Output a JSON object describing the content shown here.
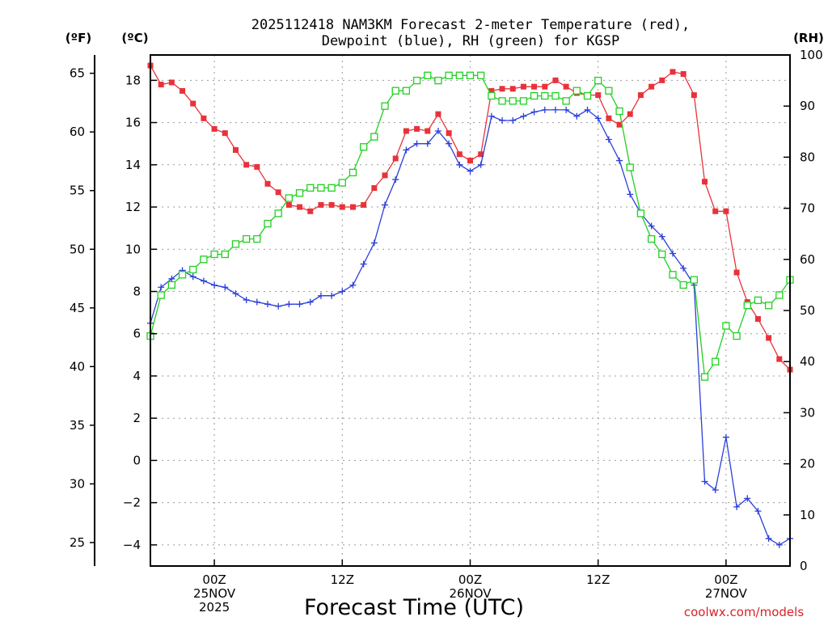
{
  "chart_data": {
    "type": "line",
    "title_line1": "2025112418 NAM3KM Forecast 2-meter Temperature (red),",
    "title_line2": "Dewpoint (blue), RH (green) for KGSP",
    "y_units_f": "(ºF)",
    "y_units_c": "(ºC)",
    "y_units_rh": "(RH)",
    "xlabel": "Forecast Time (UTC)",
    "credit": "coolwx.com/models",
    "x_range_hours": [
      0,
      60
    ],
    "celsius_range": [
      -5,
      19.2
    ],
    "rh_range": [
      0,
      100
    ],
    "celsius_ticks": [
      -4,
      -2,
      0,
      2,
      4,
      6,
      8,
      10,
      12,
      14,
      16,
      18
    ],
    "fahrenheit_ticks": [
      25,
      30,
      35,
      40,
      45,
      50,
      55,
      60,
      65
    ],
    "rh_ticks": [
      0,
      10,
      20,
      30,
      40,
      50,
      60,
      70,
      80,
      90,
      100
    ],
    "x_ticks": [
      {
        "hour": 6,
        "lines": [
          "00Z",
          "25NOV",
          "2025"
        ]
      },
      {
        "hour": 18,
        "lines": [
          "12Z"
        ]
      },
      {
        "hour": 30,
        "lines": [
          "00Z",
          "26NOV"
        ]
      },
      {
        "hour": 42,
        "lines": [
          "12Z"
        ]
      },
      {
        "hour": 54,
        "lines": [
          "00Z",
          "27NOV"
        ]
      }
    ],
    "series": [
      {
        "name": "Temperature",
        "color": "#e8323a",
        "marker": "filled-square",
        "unit": "C",
        "values": [
          18.7,
          17.8,
          17.9,
          17.5,
          16.9,
          16.2,
          15.7,
          15.5,
          14.7,
          14.0,
          13.9,
          13.1,
          12.7,
          12.1,
          12.0,
          11.8,
          12.1,
          12.1,
          12.0,
          12.0,
          12.1,
          12.9,
          13.5,
          14.3,
          15.6,
          15.7,
          15.6,
          16.4,
          15.5,
          14.5,
          14.2,
          14.5,
          17.5,
          17.6,
          17.6,
          17.7,
          17.7,
          17.7,
          18.0,
          17.7,
          17.4,
          17.3,
          17.3,
          16.2,
          15.9,
          16.4,
          17.3,
          17.7,
          18.0,
          18.4,
          18.3,
          17.3,
          13.2,
          11.8,
          11.8,
          8.9,
          7.5,
          6.7,
          5.8,
          4.8,
          4.3
        ]
      },
      {
        "name": "Dewpoint",
        "color": "#2a3fd8",
        "marker": "plus",
        "unit": "C",
        "values": [
          6.5,
          8.2,
          8.6,
          9.0,
          8.7,
          8.5,
          8.3,
          8.2,
          7.9,
          7.6,
          7.5,
          7.4,
          7.3,
          7.4,
          7.4,
          7.5,
          7.8,
          7.8,
          8.0,
          8.3,
          9.3,
          10.3,
          12.1,
          13.3,
          14.7,
          15.0,
          15.0,
          15.6,
          15.0,
          14.0,
          13.7,
          14.0,
          16.3,
          16.1,
          16.1,
          16.3,
          16.5,
          16.6,
          16.6,
          16.6,
          16.3,
          16.6,
          16.2,
          15.2,
          14.2,
          12.6,
          11.7,
          11.1,
          10.6,
          9.8,
          9.1,
          8.3,
          -1.0,
          -1.4,
          1.1,
          -2.2,
          -1.8,
          -2.4,
          -3.7,
          -4.0,
          -3.7
        ]
      },
      {
        "name": "RH",
        "color": "#22d022",
        "marker": "open-square",
        "unit": "%",
        "values": [
          45,
          53,
          55,
          57,
          58,
          60,
          61,
          61,
          63,
          64,
          64,
          67,
          69,
          72,
          73,
          74,
          74,
          74,
          75,
          77,
          82,
          84,
          90,
          93,
          93,
          95,
          96,
          95,
          96,
          96,
          96,
          96,
          92,
          91,
          91,
          91,
          92,
          92,
          92,
          91,
          93,
          92,
          95,
          93,
          89,
          78,
          69,
          64,
          61,
          57,
          55,
          56,
          37,
          40,
          47,
          45,
          51,
          52,
          51,
          53,
          56
        ]
      }
    ]
  }
}
